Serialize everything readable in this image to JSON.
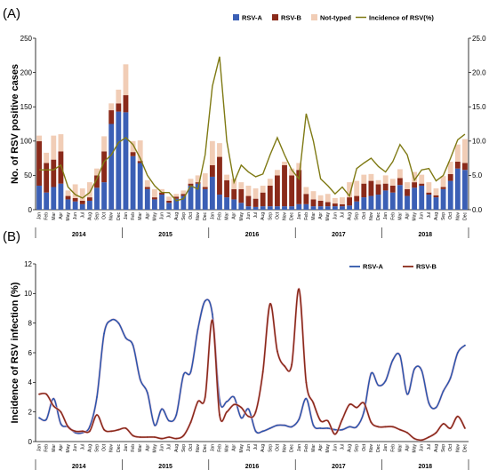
{
  "months": [
    "Jan",
    "Feb",
    "Mar",
    "Apr",
    "May",
    "Jun",
    "Jul",
    "Aug",
    "Sep",
    "Oct",
    "Nov",
    "Dec"
  ],
  "years": [
    "2014",
    "2015",
    "2016",
    "2017",
    "2018"
  ],
  "colors": {
    "rsv_a": "#3b5fb5",
    "rsv_b": "#8a2a1a",
    "not_typed": "#f1cdb6",
    "incidence": "#7f7a14",
    "line_a": "#2e55aa",
    "line_b": "#8a2a1a"
  },
  "chart_data": [
    {
      "panel": "(A)",
      "type": "bar",
      "stacked": true,
      "ylabel": "No. of RSV positive cases",
      "ylim": [
        0,
        250
      ],
      "y2lim": [
        0,
        25
      ],
      "yticks": [
        "0",
        "50",
        "100",
        "150",
        "200",
        "250"
      ],
      "y2ticks": [
        "0.0",
        "5.0",
        "10.0",
        "15.0",
        "20.0",
        "25.0"
      ],
      "legend": [
        "RSV-A",
        "RSV-B",
        "Not-typed",
        "Incidence of RSV(%)"
      ],
      "series": [
        {
          "name": "RSV-A",
          "values": [
            35,
            25,
            33,
            38,
            15,
            12,
            8,
            13,
            32,
            40,
            125,
            143,
            142,
            78,
            68,
            30,
            15,
            22,
            10,
            16,
            20,
            35,
            38,
            30,
            48,
            22,
            18,
            15,
            10,
            5,
            4,
            5,
            5,
            5,
            5,
            5,
            8,
            8,
            5,
            5,
            5,
            5,
            5,
            6,
            12,
            18,
            20,
            22,
            28,
            25,
            36,
            20,
            32,
            35,
            22,
            18,
            30,
            42,
            60,
            58
          ]
        },
        {
          "name": "RSV-B",
          "values": [
            65,
            43,
            40,
            47,
            5,
            5,
            5,
            5,
            18,
            45,
            20,
            12,
            25,
            6,
            3,
            3,
            3,
            3,
            3,
            3,
            3,
            3,
            2,
            3,
            17,
            55,
            25,
            15,
            20,
            15,
            12,
            20,
            30,
            45,
            60,
            45,
            50,
            15,
            10,
            8,
            6,
            4,
            3,
            12,
            8,
            20,
            22,
            15,
            10,
            10,
            10,
            10,
            8,
            3,
            3,
            3,
            3,
            10,
            10,
            10
          ]
        },
        {
          "name": "Not-typed",
          "values": [
            8,
            15,
            35,
            25,
            8,
            20,
            18,
            22,
            10,
            22,
            10,
            20,
            45,
            16,
            30,
            10,
            12,
            5,
            6,
            4,
            5,
            7,
            10,
            20,
            35,
            20,
            8,
            15,
            10,
            15,
            15,
            10,
            10,
            8,
            5,
            10,
            10,
            10,
            12,
            8,
            12,
            8,
            10,
            22,
            22,
            13,
            10,
            6,
            12,
            10,
            13,
            10,
            15,
            13,
            15,
            10,
            16,
            18,
            25,
            35
          ]
        },
        {
          "name": "Incidence of RSV(%)",
          "axis": "right",
          "values": [
            5.8,
            5.8,
            5.8,
            6.5,
            3.3,
            2.2,
            1.7,
            2.5,
            4.5,
            7.0,
            8.0,
            9.8,
            10.5,
            9.5,
            7.5,
            5.0,
            3.5,
            2.5,
            2.5,
            1.3,
            1.6,
            3.5,
            3.0,
            8.0,
            18.0,
            22.3,
            10.0,
            4.0,
            6.5,
            5.5,
            4.8,
            5.2,
            8.0,
            10.5,
            8.0,
            5.8,
            4.5,
            14.0,
            10.0,
            4.5,
            3.5,
            2.3,
            3.3,
            2.0,
            6.0,
            6.8,
            7.5,
            6.3,
            5.5,
            7.0,
            9.5,
            8.0,
            4.3,
            5.8,
            6.0,
            4.2,
            5.0,
            7.5,
            10.2,
            11.0
          ]
        }
      ]
    },
    {
      "panel": "(B)",
      "type": "line",
      "ylabel": "Incidence of RSV infection (%)",
      "ylim": [
        0,
        12
      ],
      "yticks": [
        "0",
        "2",
        "4",
        "6",
        "8",
        "10",
        "12"
      ],
      "legend": [
        "RSV-A",
        "RSV-B"
      ],
      "series": [
        {
          "name": "RSV-A",
          "values": [
            1.6,
            1.5,
            2.9,
            1.2,
            1.0,
            0.6,
            0.6,
            1.0,
            3.0,
            7.3,
            8.2,
            8.0,
            7.0,
            6.5,
            4.2,
            3.3,
            1.1,
            2.2,
            1.4,
            1.8,
            4.5,
            4.7,
            7.6,
            9.5,
            8.6,
            2.8,
            2.7,
            3.0,
            1.6,
            2.2,
            0.7,
            0.7,
            0.9,
            1.1,
            1.1,
            1.0,
            1.5,
            2.9,
            1.1,
            0.9,
            0.9,
            0.8,
            0.8,
            1.0,
            1.0,
            2.0,
            4.6,
            3.8,
            4.1,
            5.5,
            5.8,
            3.2,
            4.9,
            4.8,
            2.6,
            2.3,
            3.4,
            4.3,
            6.0,
            6.5
          ]
        },
        {
          "name": "RSV-B",
          "values": [
            3.2,
            3.2,
            2.4,
            2.0,
            1.0,
            0.7,
            0.7,
            0.7,
            1.8,
            0.8,
            0.7,
            0.8,
            0.9,
            0.4,
            0.3,
            0.3,
            0.3,
            0.2,
            0.3,
            0.2,
            0.4,
            1.3,
            2.7,
            3.0,
            8.2,
            1.8,
            2.0,
            2.5,
            2.3,
            1.7,
            2.0,
            4.7,
            9.3,
            6.1,
            5.1,
            5.2,
            10.3,
            4.0,
            2.6,
            1.4,
            1.4,
            0.5,
            1.5,
            2.5,
            2.3,
            2.6,
            1.3,
            1.0,
            1.0,
            1.0,
            0.8,
            0.6,
            0.2,
            0.1,
            0.3,
            0.6,
            1.2,
            0.9,
            1.7,
            0.9
          ]
        }
      ]
    }
  ]
}
